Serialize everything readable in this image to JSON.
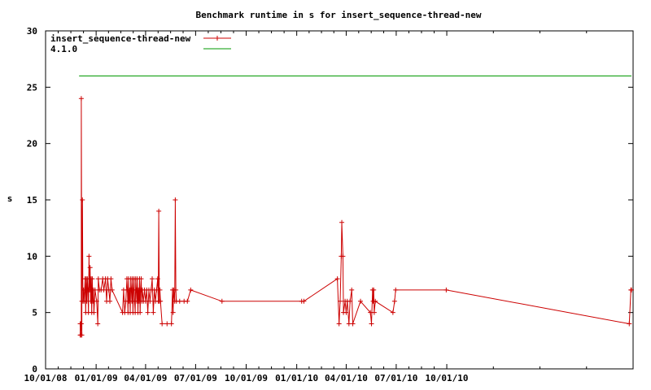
{
  "chart_data": {
    "type": "line",
    "title": "Benchmark runtime in s for insert_sequence-thread-new",
    "xlabel": "",
    "ylabel": "s",
    "x_type": "date",
    "xlim": [
      "2008-10-01",
      "2011-09-05"
    ],
    "ylim": [
      0,
      30
    ],
    "yticks": [
      0,
      5,
      10,
      15,
      20,
      25,
      30
    ],
    "xticks": [
      {
        "date": "2008-10-01",
        "label": "10/01/08"
      },
      {
        "date": "2009-01-01",
        "label": "01/01/09"
      },
      {
        "date": "2009-04-01",
        "label": "04/01/09"
      },
      {
        "date": "2009-07-01",
        "label": "07/01/09"
      },
      {
        "date": "2009-10-01",
        "label": "10/01/09"
      },
      {
        "date": "2010-01-01",
        "label": "01/01/10"
      },
      {
        "date": "2010-04-01",
        "label": "04/01/10"
      },
      {
        "date": "2010-07-01",
        "label": "07/01/10"
      },
      {
        "date": "2010-10-01",
        "label": "10/01/10"
      }
    ],
    "grid": false,
    "legend_position": "top-left",
    "series": [
      {
        "name": "insert_sequence-thread-new",
        "color": "#cc0000",
        "marker": "plus",
        "points": [
          [
            "2008-12-03",
            4
          ],
          [
            "2008-12-03",
            3
          ],
          [
            "2008-12-04",
            4
          ],
          [
            "2008-12-04",
            3
          ],
          [
            "2008-12-05",
            4
          ],
          [
            "2008-12-05",
            24
          ],
          [
            "2008-12-06",
            3
          ],
          [
            "2008-12-06",
            6
          ],
          [
            "2008-12-07",
            15
          ],
          [
            "2008-12-08",
            6
          ],
          [
            "2008-12-09",
            7
          ],
          [
            "2008-12-10",
            6
          ],
          [
            "2008-12-11",
            7
          ],
          [
            "2008-12-12",
            8
          ],
          [
            "2008-12-13",
            5
          ],
          [
            "2008-12-14",
            8
          ],
          [
            "2008-12-15",
            6
          ],
          [
            "2008-12-16",
            8
          ],
          [
            "2008-12-17",
            7
          ],
          [
            "2008-12-18",
            5
          ],
          [
            "2008-12-19",
            10
          ],
          [
            "2008-12-20",
            7
          ],
          [
            "2008-12-21",
            9
          ],
          [
            "2008-12-22",
            6
          ],
          [
            "2008-12-23",
            8
          ],
          [
            "2008-12-24",
            5
          ],
          [
            "2008-12-25",
            8
          ],
          [
            "2008-12-26",
            6
          ],
          [
            "2008-12-27",
            7
          ],
          [
            "2008-12-28",
            5
          ],
          [
            "2008-12-30",
            7
          ],
          [
            "2009-01-02",
            6
          ],
          [
            "2009-01-04",
            4
          ],
          [
            "2009-01-05",
            8
          ],
          [
            "2009-01-07",
            7
          ],
          [
            "2009-01-10",
            7
          ],
          [
            "2009-01-13",
            8
          ],
          [
            "2009-01-15",
            7
          ],
          [
            "2009-01-18",
            8
          ],
          [
            "2009-01-20",
            6
          ],
          [
            "2009-01-22",
            8
          ],
          [
            "2009-01-24",
            7
          ],
          [
            "2009-01-26",
            6
          ],
          [
            "2009-01-28",
            8
          ],
          [
            "2009-01-30",
            7
          ],
          [
            "2009-02-18",
            5
          ],
          [
            "2009-02-20",
            7
          ],
          [
            "2009-02-22",
            5
          ],
          [
            "2009-02-24",
            6
          ],
          [
            "2009-02-26",
            8
          ],
          [
            "2009-02-27",
            7
          ],
          [
            "2009-02-28",
            5
          ],
          [
            "2009-03-01",
            8
          ],
          [
            "2009-03-02",
            6
          ],
          [
            "2009-03-03",
            7
          ],
          [
            "2009-03-04",
            5
          ],
          [
            "2009-03-05",
            8
          ],
          [
            "2009-03-06",
            7
          ],
          [
            "2009-03-07",
            6
          ],
          [
            "2009-03-08",
            8
          ],
          [
            "2009-03-09",
            5
          ],
          [
            "2009-03-10",
            7
          ],
          [
            "2009-03-11",
            8
          ],
          [
            "2009-03-12",
            6
          ],
          [
            "2009-03-13",
            5
          ],
          [
            "2009-03-14",
            8
          ],
          [
            "2009-03-15",
            7
          ],
          [
            "2009-03-16",
            6
          ],
          [
            "2009-03-17",
            8
          ],
          [
            "2009-03-18",
            5
          ],
          [
            "2009-03-19",
            7
          ],
          [
            "2009-03-20",
            6
          ],
          [
            "2009-03-21",
            8
          ],
          [
            "2009-03-22",
            5
          ],
          [
            "2009-03-23",
            7
          ],
          [
            "2009-03-24",
            8
          ],
          [
            "2009-03-25",
            6
          ],
          [
            "2009-03-26",
            7
          ],
          [
            "2009-03-28",
            6
          ],
          [
            "2009-03-30",
            7
          ],
          [
            "2009-04-01",
            6
          ],
          [
            "2009-04-03",
            7
          ],
          [
            "2009-04-05",
            5
          ],
          [
            "2009-04-07",
            7
          ],
          [
            "2009-04-09",
            6
          ],
          [
            "2009-04-11",
            7
          ],
          [
            "2009-04-13",
            8
          ],
          [
            "2009-04-15",
            5
          ],
          [
            "2009-04-17",
            7
          ],
          [
            "2009-04-19",
            6
          ],
          [
            "2009-04-21",
            7
          ],
          [
            "2009-04-23",
            8
          ],
          [
            "2009-04-24",
            6
          ],
          [
            "2009-04-25",
            14
          ],
          [
            "2009-04-26",
            6
          ],
          [
            "2009-04-27",
            7
          ],
          [
            "2009-04-28",
            6
          ],
          [
            "2009-05-01",
            4
          ],
          [
            "2009-05-10",
            4
          ],
          [
            "2009-05-18",
            4
          ],
          [
            "2009-05-20",
            7
          ],
          [
            "2009-05-21",
            5
          ],
          [
            "2009-05-22",
            7
          ],
          [
            "2009-05-24",
            6
          ],
          [
            "2009-05-25",
            15
          ],
          [
            "2009-05-26",
            7
          ],
          [
            "2009-05-27",
            6
          ],
          [
            "2009-06-02",
            6
          ],
          [
            "2009-06-10",
            6
          ],
          [
            "2009-06-16",
            6
          ],
          [
            "2009-06-22",
            7
          ],
          [
            "2009-08-18",
            6
          ],
          [
            "2010-01-10",
            6
          ],
          [
            "2010-01-14",
            6
          ],
          [
            "2010-03-16",
            8
          ],
          [
            "2010-03-19",
            4
          ],
          [
            "2010-03-21",
            6
          ],
          [
            "2010-03-23",
            10
          ],
          [
            "2010-03-24",
            13
          ],
          [
            "2010-03-26",
            10
          ],
          [
            "2010-03-27",
            5
          ],
          [
            "2010-03-30",
            6
          ],
          [
            "2010-04-01",
            5
          ],
          [
            "2010-04-03",
            6
          ],
          [
            "2010-04-06",
            4
          ],
          [
            "2010-04-08",
            6
          ],
          [
            "2010-04-11",
            7
          ],
          [
            "2010-04-13",
            4
          ],
          [
            "2010-04-27",
            6
          ],
          [
            "2010-05-15",
            5
          ],
          [
            "2010-05-17",
            4
          ],
          [
            "2010-05-19",
            7
          ],
          [
            "2010-05-20",
            6
          ],
          [
            "2010-05-21",
            7
          ],
          [
            "2010-05-22",
            5
          ],
          [
            "2010-05-24",
            6
          ],
          [
            "2010-06-25",
            5
          ],
          [
            "2010-06-28",
            6
          ],
          [
            "2010-06-30",
            7
          ],
          [
            "2010-09-30",
            7
          ],
          [
            "2011-08-29",
            4
          ],
          [
            "2011-09-01",
            7
          ],
          [
            "2011-09-02",
            7
          ]
        ]
      },
      {
        "name": "4.1.0",
        "color": "#009900",
        "marker": "none",
        "points": [
          [
            "2008-12-01",
            26
          ],
          [
            "2011-09-02",
            26
          ]
        ]
      }
    ]
  }
}
